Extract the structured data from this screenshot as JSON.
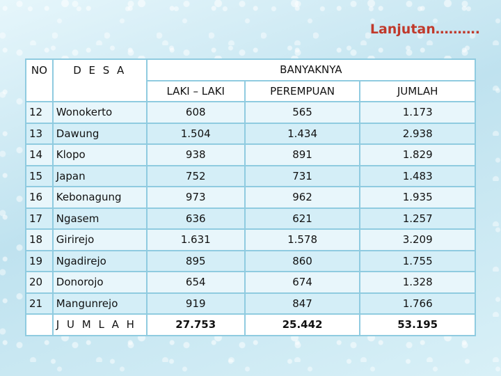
{
  "title": "Lanjutan……….",
  "headers": {
    "no": "NO",
    "desa": "D E S A",
    "banyaknya": "BANYAKNYA",
    "laki": "LAKI – LAKI",
    "perempuan": "PEREMPUAN",
    "jumlah": "JUMLAH"
  },
  "rows": [
    {
      "no": "12",
      "desa": "Wonokerto",
      "laki": "608",
      "perempuan": "565",
      "jumlah": "1.173"
    },
    {
      "no": "13",
      "desa": "Dawung",
      "laki": "1.504",
      "perempuan": "1.434",
      "jumlah": "2.938"
    },
    {
      "no": "14",
      "desa": "Klopo",
      "laki": "938",
      "perempuan": "891",
      "jumlah": "1.829"
    },
    {
      "no": "15",
      "desa": "Japan",
      "laki": "752",
      "perempuan": "731",
      "jumlah": "1.483"
    },
    {
      "no": "16",
      "desa": "Kebonagung",
      "laki": "973",
      "perempuan": "962",
      "jumlah": "1.935"
    },
    {
      "no": "17",
      "desa": "Ngasem",
      "laki": "636",
      "perempuan": "621",
      "jumlah": "1.257"
    },
    {
      "no": "18",
      "desa": "Girirejo",
      "laki": "1.631",
      "perempuan": "1.578",
      "jumlah": "3.209"
    },
    {
      "no": "19",
      "desa": "Ngadirejo",
      "laki": "895",
      "perempuan": "860",
      "jumlah": "1.755"
    },
    {
      "no": "20",
      "desa": "Donorojo",
      "laki": "654",
      "perempuan": "674",
      "jumlah": "1.328"
    },
    {
      "no": "21",
      "desa": "Mangunrejo",
      "laki": "919",
      "perempuan": "847",
      "jumlah": "1.766"
    }
  ],
  "total": {
    "label": "J U M L A H",
    "laki": "27.753",
    "perempuan": "25.442",
    "jumlah": "53.195"
  }
}
